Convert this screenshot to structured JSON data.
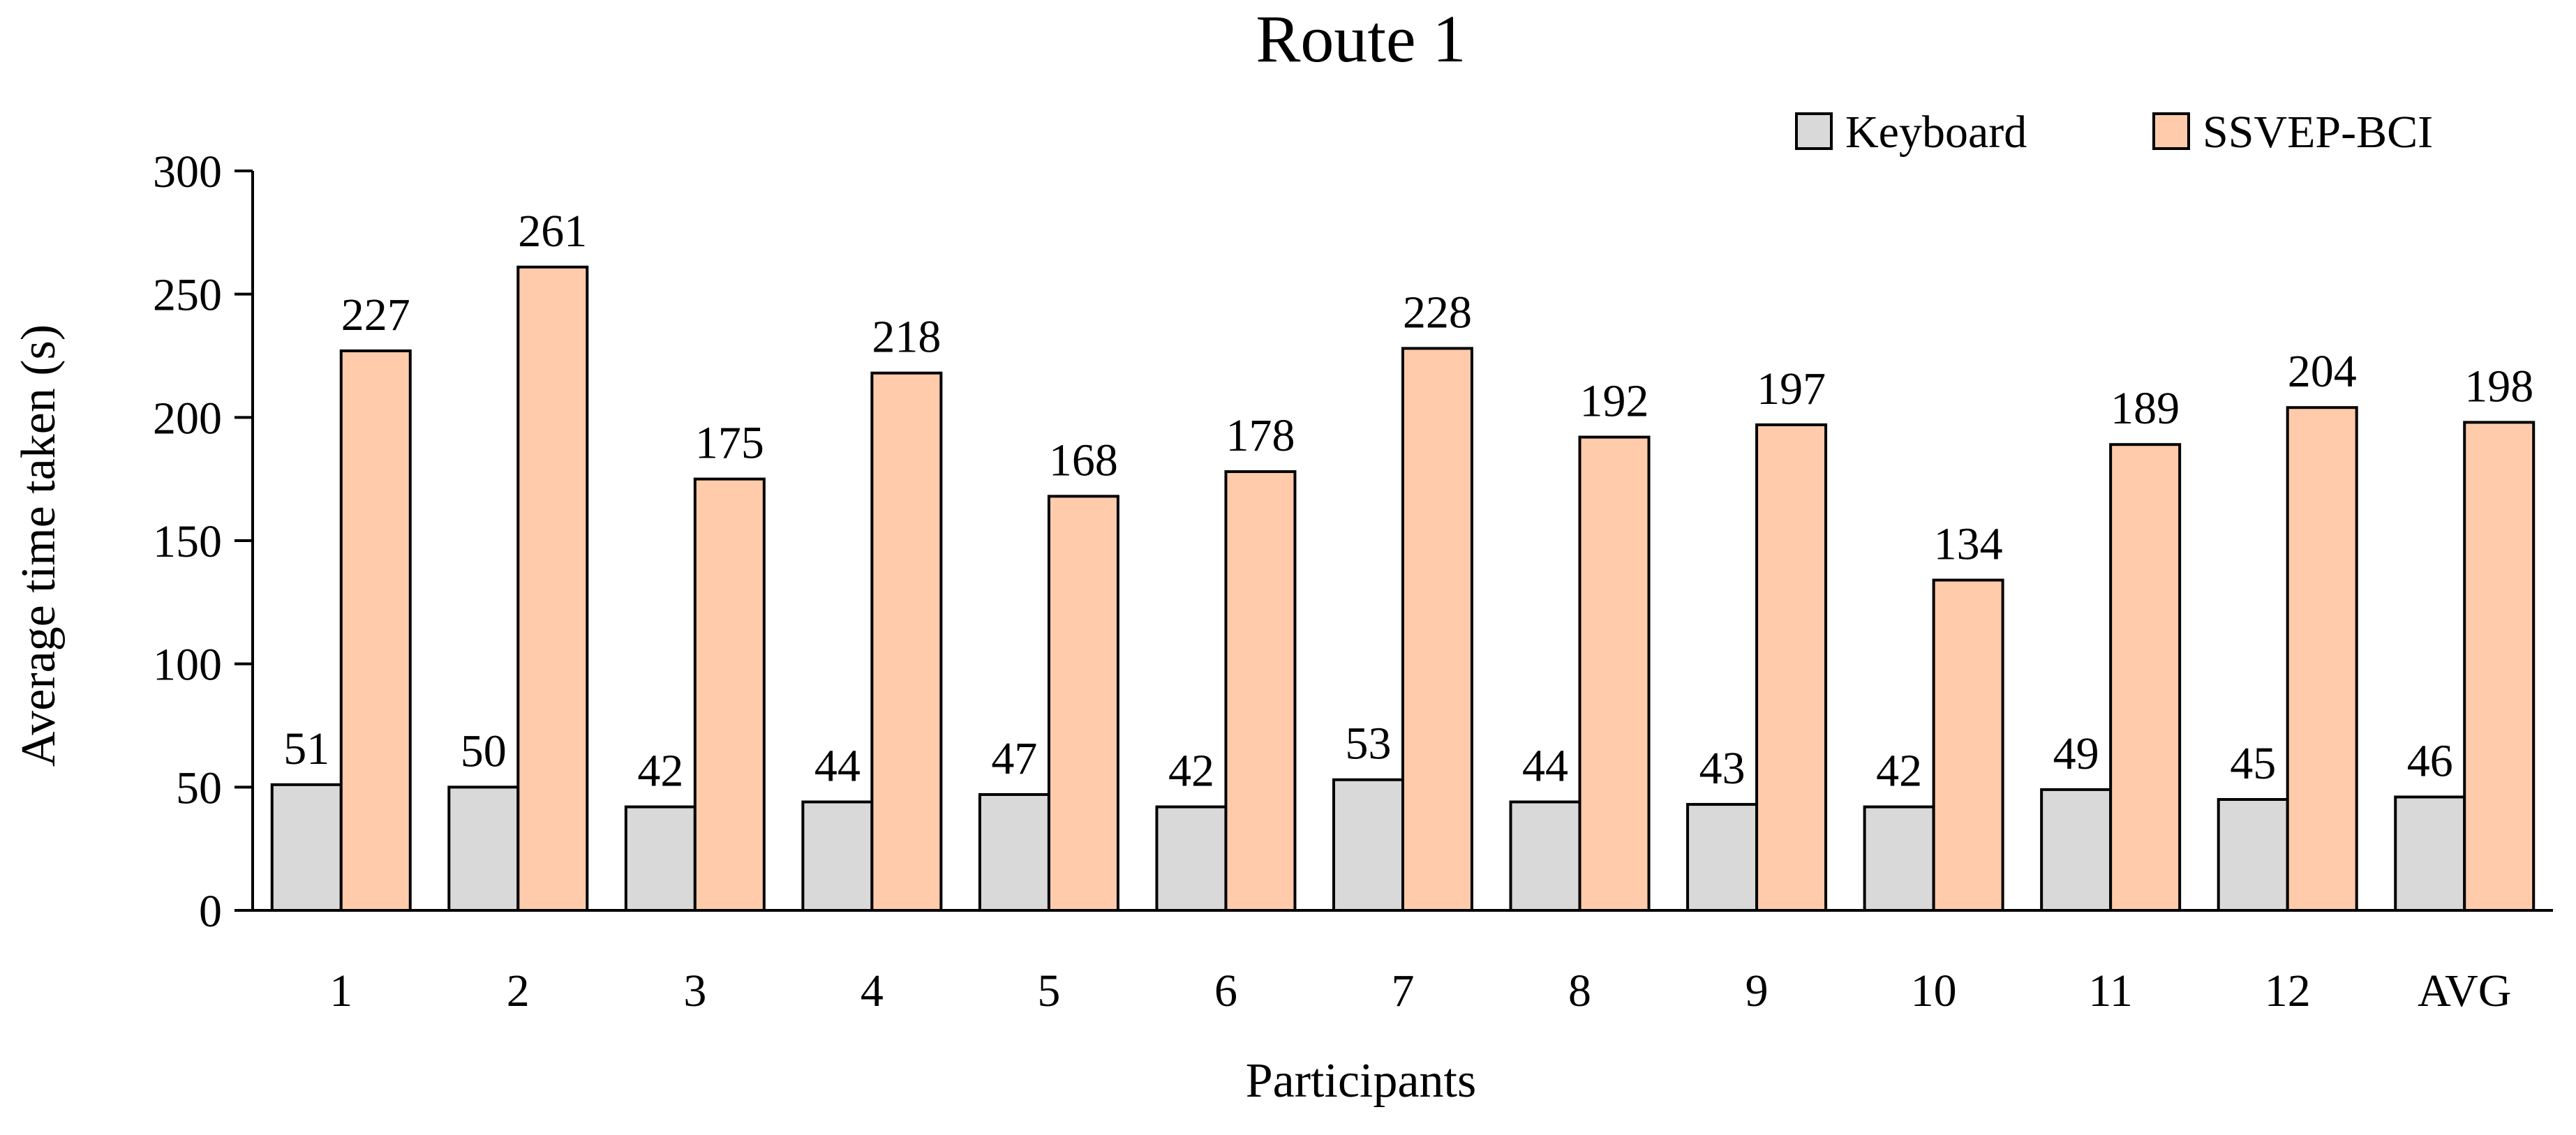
{
  "chart_data": {
    "type": "bar",
    "title": "Route 1",
    "xlabel": "Participants",
    "ylabel": "Average time taken (s)",
    "categories": [
      "1",
      "2",
      "3",
      "4",
      "5",
      "6",
      "7",
      "8",
      "9",
      "10",
      "11",
      "12",
      "AVG"
    ],
    "series": [
      {
        "name": "Keyboard",
        "color": "#d9d9d9",
        "values": [
          51,
          50,
          42,
          44,
          47,
          42,
          53,
          44,
          43,
          42,
          49,
          45,
          46
        ]
      },
      {
        "name": "SSVEP-BCI",
        "color": "#ffcbaa",
        "values": [
          227,
          261,
          175,
          218,
          168,
          178,
          228,
          192,
          197,
          134,
          189,
          204,
          198
        ]
      }
    ],
    "ylim": [
      0,
      300
    ],
    "yticks": [
      0,
      50,
      100,
      150,
      200,
      250,
      300
    ],
    "grid": false,
    "legend_position": "top-right",
    "data_labels": true
  }
}
